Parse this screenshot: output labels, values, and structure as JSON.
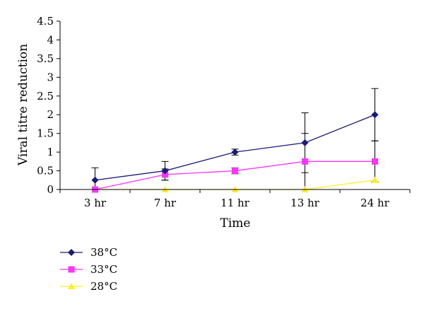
{
  "chart_data": {
    "type": "line",
    "xlabel": "Time",
    "ylabel": "Viral titre reduction",
    "categories": [
      "3 hr",
      "7 hr",
      "11 hr",
      "13 hr",
      "24 hr"
    ],
    "ylim": [
      0,
      4.5
    ],
    "yticks": [
      "0",
      "0.5",
      "1",
      "1.5",
      "2",
      "2.5",
      "3",
      "3.5",
      "4",
      "4.5"
    ],
    "grid": false,
    "legend_position": "bottom-left",
    "series": [
      {
        "name": "38°C",
        "color": "#1a1a7a",
        "marker": "diamond",
        "values": [
          0.25,
          0.5,
          1.0,
          1.25,
          2.0
        ],
        "error": [
          0.33,
          0.25,
          0.08,
          0.8,
          0.7
        ]
      },
      {
        "name": "33°C",
        "color": "#ff33ff",
        "marker": "square",
        "values": [
          0.0,
          0.4,
          0.5,
          0.75,
          0.75
        ],
        "error": [
          0.0,
          0.15,
          0.08,
          0.75,
          0.55
        ]
      },
      {
        "name": "28°C",
        "color": "#ffee22",
        "marker": "triangle",
        "values": [
          0.0,
          0.0,
          0.0,
          0.0,
          0.25
        ],
        "error": [
          0.0,
          0.0,
          0.0,
          0.0,
          0.0
        ]
      }
    ]
  }
}
